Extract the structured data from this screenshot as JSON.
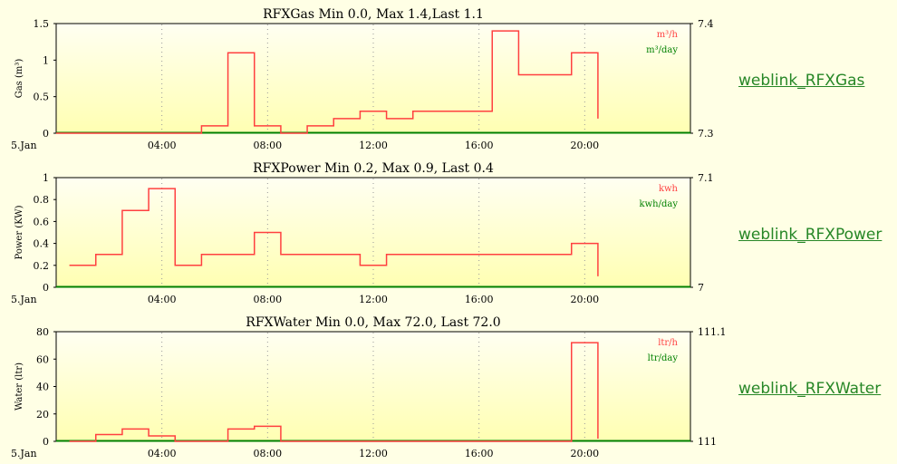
{
  "colors": {
    "series": "#ff4040",
    "daily": "#008000",
    "grid": "#999999",
    "plot_top": "#fffff2",
    "plot_bottom": "#ffffb2",
    "link": "#278727"
  },
  "weblinks": [
    "weblink_RFXGas",
    "weblink_RFXPower",
    "weblink_RFXWater"
  ],
  "chart_data": [
    {
      "type": "line",
      "step": true,
      "title": "RFXGas Min 0.0, Max 1.4,Last 1.1",
      "ylabel": "Gas (m³)",
      "y2label": "Gas (m³)",
      "ylim": [
        0,
        1.5
      ],
      "yticks": [
        "0",
        "0.5",
        "1",
        "1.5"
      ],
      "yticks_values": [
        0,
        0.5,
        1,
        1.5
      ],
      "y2lim": [
        7.3,
        7.4
      ],
      "y2ticks": [
        "7.3",
        "7.4"
      ],
      "xlim": [
        0,
        24
      ],
      "xticks": [
        "04:00",
        "08:00",
        "12:00",
        "16:00",
        "20:00"
      ],
      "xticks_values": [
        4,
        8,
        12,
        16,
        20
      ],
      "x_start_label": "5.Jan",
      "legend": [
        "m³/h",
        "m³/day"
      ],
      "legend_position": "top-right",
      "grid": true,
      "series": [
        {
          "x": [
            0,
            5.5,
            6.5,
            7.5,
            8.5,
            9.5,
            10.5,
            11.5,
            12.5,
            13.5,
            16.5,
            17.5,
            19.5,
            20.5
          ],
          "y": [
            0,
            0.1,
            1.1,
            0.1,
            0,
            0.1,
            0.2,
            0.3,
            0.2,
            0.3,
            1.4,
            0.8,
            1.1,
            0.2
          ]
        }
      ]
    },
    {
      "type": "line",
      "step": true,
      "title": "RFXPower Min 0.2, Max 0.9, Last 0.4",
      "ylabel": "Power (KW)",
      "y2label": "Power (KW)",
      "ylim": [
        0,
        1
      ],
      "yticks": [
        "0",
        "0.2",
        "0.4",
        "0.6",
        "0.8",
        "1"
      ],
      "yticks_values": [
        0,
        0.2,
        0.4,
        0.6,
        0.8,
        1
      ],
      "y2lim": [
        7,
        7.1
      ],
      "y2ticks": [
        "7",
        "7.1"
      ],
      "xlim": [
        0,
        24
      ],
      "xticks": [
        "04:00",
        "08:00",
        "12:00",
        "16:00",
        "20:00"
      ],
      "xticks_values": [
        4,
        8,
        12,
        16,
        20
      ],
      "x_start_label": "5.Jan",
      "legend": [
        "kwh",
        "kwh/day"
      ],
      "legend_position": "top-right",
      "grid": true,
      "series": [
        {
          "x": [
            0.5,
            1.5,
            2.5,
            3.5,
            4.5,
            5.5,
            7.5,
            8.5,
            11.5,
            12.5,
            19.5,
            20.5
          ],
          "y": [
            0.2,
            0.3,
            0.7,
            0.9,
            0.2,
            0.3,
            0.5,
            0.3,
            0.2,
            0.3,
            0.4,
            0.1
          ]
        }
      ]
    },
    {
      "type": "line",
      "step": true,
      "title": "RFXWater Min 0.0, Max 72.0, Last 72.0",
      "ylabel": "Water (ltr)",
      "y2label": "Water (ltr)",
      "ylim": [
        0,
        80
      ],
      "yticks": [
        "0",
        "20",
        "40",
        "60",
        "80"
      ],
      "yticks_values": [
        0,
        20,
        40,
        60,
        80
      ],
      "y2lim": [
        111,
        111.1
      ],
      "y2ticks": [
        "111",
        "111.1"
      ],
      "xlim": [
        0,
        24
      ],
      "xticks": [
        "04:00",
        "08:00",
        "12:00",
        "16:00",
        "20:00"
      ],
      "xticks_values": [
        4,
        8,
        12,
        16,
        20
      ],
      "x_start_label": "5.Jan",
      "legend": [
        "ltr/h",
        "ltr/day"
      ],
      "legend_position": "top-right",
      "grid": true,
      "series": [
        {
          "x": [
            0.5,
            1.5,
            2.5,
            3.5,
            4.5,
            5.5,
            6.5,
            7.5,
            8.5,
            19.5,
            20.5
          ],
          "y": [
            0,
            5,
            9,
            4,
            0,
            0,
            9,
            11,
            0,
            72,
            2
          ]
        }
      ]
    }
  ]
}
